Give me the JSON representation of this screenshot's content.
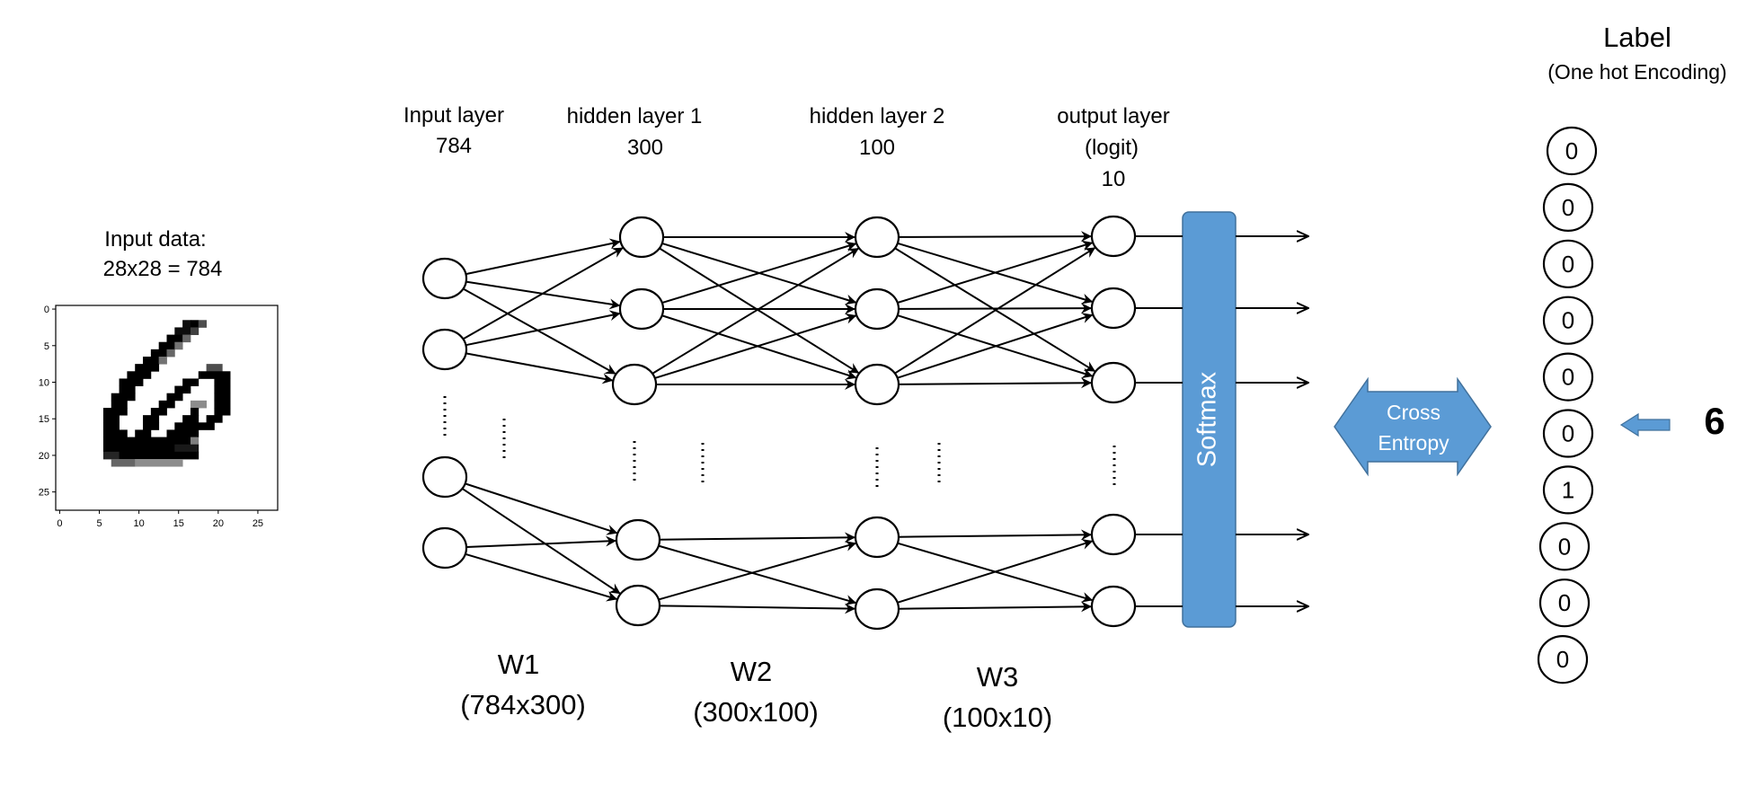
{
  "input_data": {
    "title_line1": "Input data:",
    "title_line2": "28x28 = 784"
  },
  "digit_plot": {
    "x_ticks": [
      "0",
      "5",
      "10",
      "15",
      "20",
      "25"
    ],
    "y_ticks": [
      "0",
      "5",
      "10",
      "15",
      "20",
      "25"
    ]
  },
  "layers": {
    "input": {
      "line1": "Input layer",
      "line2": "784"
    },
    "hidden1": {
      "line1": "hidden layer 1",
      "line2": "300"
    },
    "hidden2": {
      "line1": "hidden layer 2",
      "line2": "100"
    },
    "output": {
      "line1": "output layer",
      "line2": "(logit)",
      "line3": "10"
    }
  },
  "weights": {
    "w1": {
      "name": "W1",
      "dims": "(784x300)"
    },
    "w2": {
      "name": "W2",
      "dims": "(300x100)"
    },
    "w3": {
      "name": "W3",
      "dims": "(100x10)"
    }
  },
  "softmax": {
    "label": "Softmax",
    "color": "#5b9bd5"
  },
  "cross_entropy": {
    "line1": "Cross",
    "line2": "Entropy",
    "color": "#5b9bd5"
  },
  "label": {
    "title": "Label",
    "subtitle": "(One hot Encoding)",
    "values": [
      "0",
      "0",
      "0",
      "0",
      "0",
      "0",
      "1",
      "0",
      "0",
      "0"
    ],
    "target": "6"
  }
}
